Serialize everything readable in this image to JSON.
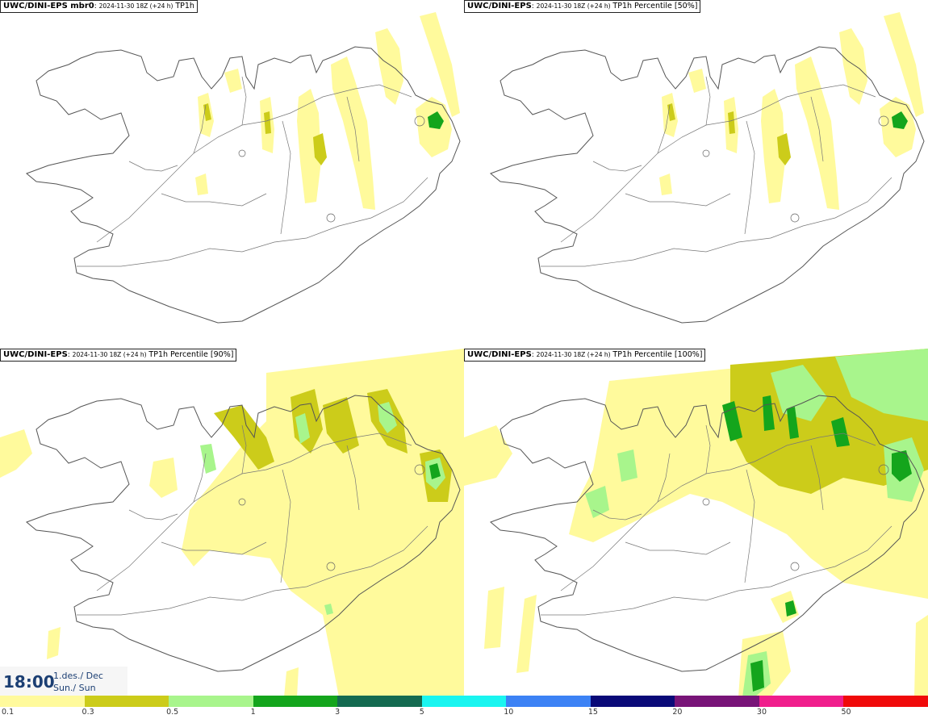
{
  "panels": [
    {
      "model": "UWC/DINI-EPS mbr0",
      "run": "2024-11-30 18Z (+24 h)",
      "variable": "TP1h",
      "intensity": "low"
    },
    {
      "model": "UWC/DINI-EPS",
      "run": "2024-11-30 18Z (+24 h)",
      "variable": "TP1h Percentile [50%]",
      "intensity": "low"
    },
    {
      "model": "UWC/DINI-EPS",
      "run": "2024-11-30 18Z (+24 h)",
      "variable": "TP1h Percentile [90%]",
      "intensity": "medium"
    },
    {
      "model": "UWC/DINI-EPS",
      "run": "2024-11-30 18Z (+24 h)",
      "variable": "TP1h Percentile [100%]",
      "intensity": "high"
    }
  ],
  "valid_time": {
    "time": "18:00",
    "date_line1": "1.des./ Dec",
    "date_line2": "Sun./ Sun"
  },
  "legend": {
    "colors": [
      "#fffa9c",
      "#cccc1a",
      "#a8f58c",
      "#14a51c",
      "#146a50",
      "#1af5f0",
      "#3c82f5",
      "#0a0a78",
      "#781478",
      "#f01e8c",
      "#f00a0a"
    ],
    "ticks": [
      "0.1",
      "0.3",
      "0.5",
      "1",
      "3",
      "5",
      "10",
      "15",
      "20",
      "30",
      "50"
    ]
  },
  "palette": {
    "c1": "#fffa9c",
    "c2": "#cccc1a",
    "c3": "#a8f58c",
    "c4": "#14a51c",
    "coast": "#555555"
  }
}
